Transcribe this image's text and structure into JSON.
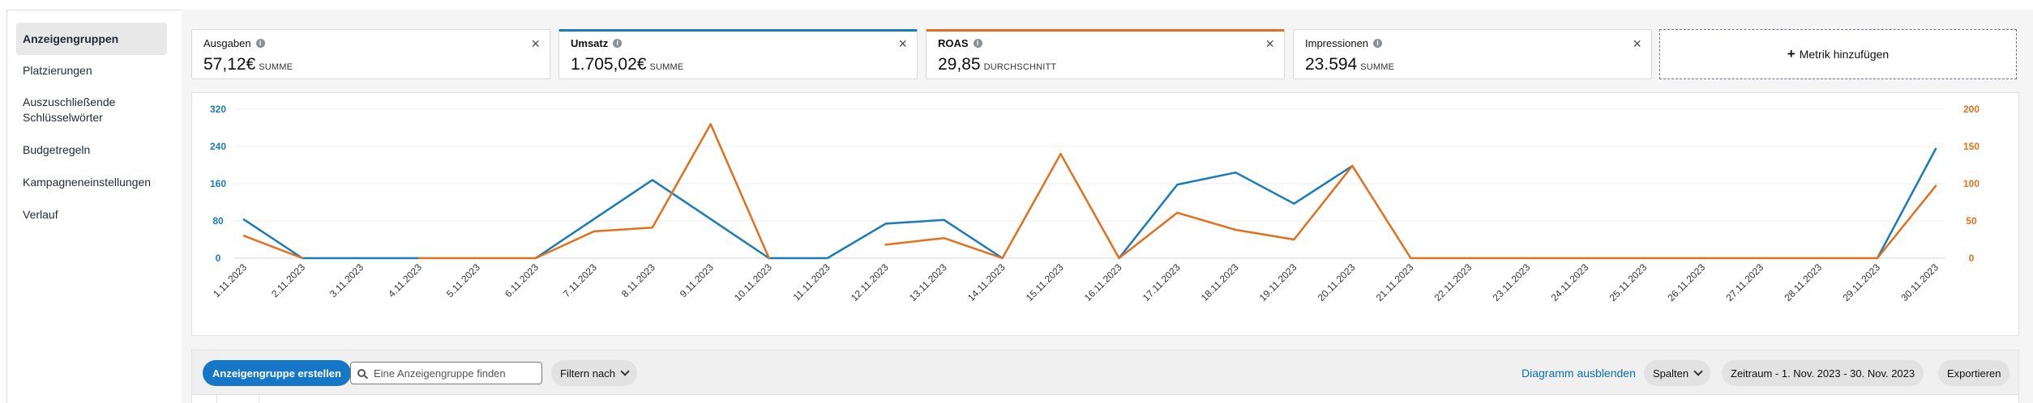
{
  "sidebar": {
    "items": [
      {
        "label": "Anzeigengruppen",
        "active": true
      },
      {
        "label": "Platzierungen",
        "active": false
      },
      {
        "label": "Auszuschließende Schlüsselwörter",
        "active": false
      },
      {
        "label": "Budgetregeln",
        "active": false
      },
      {
        "label": "Kampagneneinstellungen",
        "active": false
      },
      {
        "label": "Verlauf",
        "active": false
      }
    ]
  },
  "metrics": [
    {
      "label": "Ausgaben",
      "value": "57,12€",
      "sub": "SUMME",
      "accent": "",
      "info_icon": "info-icon",
      "close_icon": "close-icon"
    },
    {
      "label": "Umsatz",
      "value": "1.705,02€",
      "sub": "SUMME",
      "accent": "#1a7bb9",
      "info_icon": "info-icon",
      "close_icon": "close-icon"
    },
    {
      "label": "ROAS",
      "value": "29,85",
      "sub": "DURCHSCHNITT",
      "accent": "#e2701d",
      "info_icon": "info-icon",
      "close_icon": "close-icon"
    },
    {
      "label": "Impressionen",
      "value": "23.594",
      "sub": "SUMME",
      "accent": "",
      "info_icon": "info-icon",
      "close_icon": "close-icon"
    }
  ],
  "add_metric": {
    "label": "Metrik hinzufügen",
    "icon": "plus-icon"
  },
  "chart_data": {
    "type": "line",
    "x": [
      "1.11.2023",
      "2.11.2023",
      "3.11.2023",
      "4.11.2023",
      "5.11.2023",
      "6.11.2023",
      "7.11.2023",
      "8.11.2023",
      "9.11.2023",
      "10.11.2023",
      "11.11.2023",
      "12.11.2023",
      "13.11.2023",
      "14.11.2023",
      "15.11.2023",
      "16.11.2023",
      "17.11.2023",
      "18.11.2023",
      "19.11.2023",
      "20.11.2023",
      "21.11.2023",
      "22.11.2023",
      "23.11.2023",
      "24.11.2023",
      "25.11.2023",
      "26.11.2023",
      "27.11.2023",
      "28.11.2023",
      "29.11.2023",
      "30.11.2023"
    ],
    "y_left": {
      "ticks": [
        0,
        80,
        160,
        240,
        320
      ],
      "range": [
        0,
        320
      ],
      "color": "#1a7bb9"
    },
    "y_right": {
      "ticks": [
        0,
        50,
        100,
        150,
        200
      ],
      "range": [
        0,
        200
      ],
      "color": "#e2701d"
    },
    "series": [
      {
        "name": "Umsatz",
        "axis": "left",
        "color": "#1a7bb9",
        "values": [
          83,
          0,
          0,
          0,
          null,
          0,
          84,
          168,
          84,
          0,
          0,
          74,
          82,
          0,
          null,
          0,
          158,
          184,
          117,
          198,
          null,
          null,
          null,
          null,
          null,
          null,
          null,
          null,
          0,
          235
        ]
      },
      {
        "name": "ROAS",
        "axis": "right",
        "color": "#e2701d",
        "values": [
          30,
          0,
          null,
          0,
          0,
          0,
          36,
          41,
          180,
          0,
          null,
          18,
          27,
          0,
          140,
          0,
          61,
          38,
          25,
          124,
          0,
          0,
          0,
          0,
          0,
          0,
          0,
          0,
          0,
          97
        ]
      }
    ],
    "grid": true,
    "legend": "none"
  },
  "toolbar": {
    "create_label": "Anzeigengruppe erstellen",
    "search_placeholder": "Eine Anzeigengruppe finden",
    "search_value": "",
    "filter_label": "Filtern nach",
    "hide_chart_label": "Diagramm ausblenden",
    "columns_label": "Spalten",
    "date_range_label": "Zeitraum - 1. Nov. 2023 - 30. Nov. 2023",
    "export_label": "Exportieren"
  }
}
